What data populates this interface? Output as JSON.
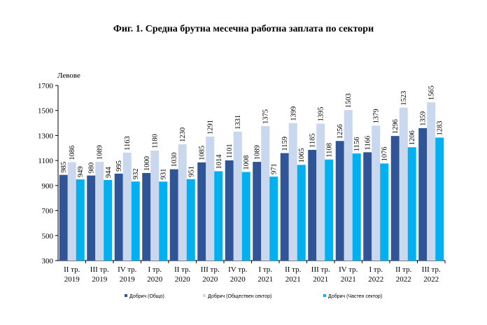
{
  "chart_data": {
    "type": "bar",
    "title": "Фиг. 1. Средна брутна месечна работна заплата по сектори",
    "ylabel": "Левове",
    "xlabel": "",
    "ylim": [
      300,
      1700
    ],
    "yticks": [
      300,
      500,
      700,
      900,
      1100,
      1300,
      1500,
      1700
    ],
    "grid": false,
    "legend_position": "bottom",
    "categories": [
      [
        "II тр.",
        "2019"
      ],
      [
        "III тр.",
        "2019"
      ],
      [
        "IV тр.",
        "2019"
      ],
      [
        "I тр.",
        "2020"
      ],
      [
        "II тр.",
        "2020"
      ],
      [
        "III тр.",
        "2020"
      ],
      [
        "IV тр.",
        "2020"
      ],
      [
        "I тр.",
        "2021"
      ],
      [
        "II тр.",
        "2021"
      ],
      [
        "III тр.",
        "2021"
      ],
      [
        "IV тр.",
        "2021"
      ],
      [
        "I тр.",
        "2022"
      ],
      [
        "II тр.",
        "2022"
      ],
      [
        "III тр.",
        "2022"
      ]
    ],
    "series": [
      {
        "name": "Добрич (Общо)",
        "color": "#2f5597",
        "values": [
          985,
          980,
          995,
          1000,
          1030,
          1085,
          1101,
          1089,
          1159,
          1185,
          1256,
          1166,
          1296,
          1359
        ]
      },
      {
        "name": "Добрич (Обществен сектор)",
        "color": "#c9d8ef",
        "values": [
          1086,
          1089,
          1163,
          1180,
          1230,
          1291,
          1331,
          1375,
          1399,
          1395,
          1503,
          1379,
          1523,
          1565
        ]
      },
      {
        "name": "Добрич (Частен сектор)",
        "color": "#00b0f0",
        "values": [
          949,
          944,
          932,
          931,
          951,
          1014,
          1008,
          971,
          1065,
          1108,
          1156,
          1076,
          1206,
          1283
        ]
      }
    ]
  }
}
